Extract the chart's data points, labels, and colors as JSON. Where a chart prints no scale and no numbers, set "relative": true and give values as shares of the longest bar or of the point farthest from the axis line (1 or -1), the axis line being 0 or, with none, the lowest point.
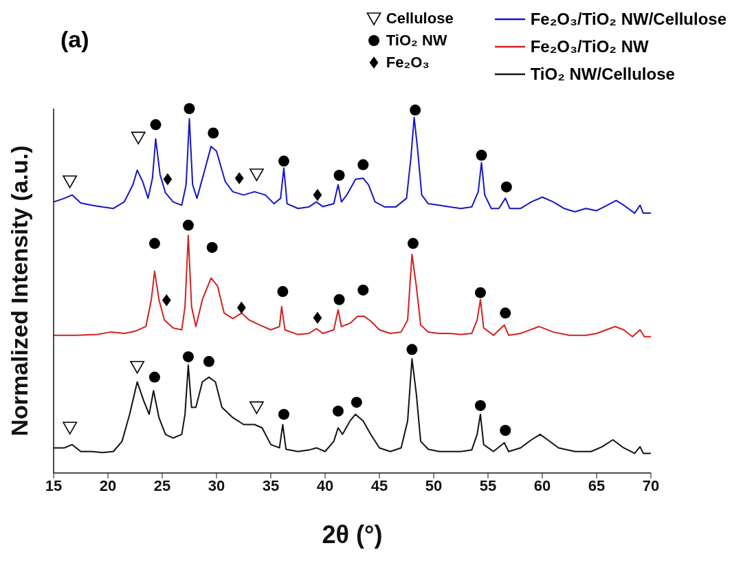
{
  "chart_data": {
    "type": "line",
    "relative": true,
    "xlabel": "2θ (°)",
    "ylabel": "Normalized Intensity (a.u.)",
    "annotations": [
      "(a)"
    ],
    "legend": "top right",
    "xlim": [
      15,
      70
    ],
    "xticks": [
      15,
      20,
      25,
      30,
      35,
      40,
      45,
      50,
      55,
      60,
      65,
      70
    ],
    "series": [
      {
        "name": "Fe₂O₃/TiO₂ NW/Cellulose",
        "color": "#1515c8",
        "x": [
          15.0,
          16.0,
          16.7,
          17.5,
          18.5,
          19.5,
          20.5,
          21.5,
          22.3,
          22.7,
          23.2,
          23.7,
          24.1,
          24.4,
          24.8,
          25.3,
          26.0,
          26.8,
          27.2,
          27.5,
          27.8,
          28.2,
          28.8,
          29.5,
          30.0,
          30.8,
          31.5,
          32.5,
          33.5,
          34.5,
          35.3,
          35.9,
          36.2,
          36.5,
          37.5,
          38.5,
          39.2,
          39.8,
          40.8,
          41.2,
          41.5,
          42.0,
          42.8,
          43.5,
          44.0,
          44.6,
          45.5,
          46.5,
          47.5,
          47.9,
          48.2,
          48.5,
          48.9,
          49.5,
          50.5,
          51.5,
          52.5,
          53.5,
          54.1,
          54.4,
          54.7,
          55.3,
          56.0,
          56.6,
          57.0,
          58.0,
          59.0,
          60.0,
          61.0,
          62.0,
          63.0,
          64.0,
          65.0,
          66.0,
          66.8,
          67.5,
          68.5,
          69.0,
          69.3,
          70.0
        ],
        "values": [
          0.744,
          0.754,
          0.763,
          0.741,
          0.735,
          0.73,
          0.726,
          0.744,
          0.791,
          0.831,
          0.8,
          0.754,
          0.809,
          0.917,
          0.819,
          0.769,
          0.744,
          0.735,
          0.791,
          0.972,
          0.791,
          0.754,
          0.819,
          0.896,
          0.883,
          0.8,
          0.772,
          0.763,
          0.772,
          0.763,
          0.739,
          0.754,
          0.837,
          0.739,
          0.726,
          0.73,
          0.744,
          0.731,
          0.739,
          0.791,
          0.744,
          0.763,
          0.806,
          0.809,
          0.791,
          0.744,
          0.73,
          0.73,
          0.754,
          0.865,
          0.976,
          0.893,
          0.763,
          0.739,
          0.735,
          0.73,
          0.726,
          0.73,
          0.772,
          0.852,
          0.763,
          0.726,
          0.726,
          0.754,
          0.726,
          0.726,
          0.744,
          0.757,
          0.744,
          0.726,
          0.717,
          0.726,
          0.72,
          0.735,
          0.748,
          0.735,
          0.713,
          0.735,
          0.713,
          0.713
        ]
      },
      {
        "name": "Fe₂O₃/TiO₂ NW",
        "color": "#d42020",
        "x": [
          15.0,
          17,
          19,
          20.3,
          21.5,
          22.5,
          23.5,
          24.0,
          24.3,
          24.7,
          25.2,
          26.0,
          26.8,
          27.1,
          27.4,
          27.7,
          28.1,
          28.7,
          29.5,
          30.1,
          30.7,
          31.5,
          32.3,
          33.0,
          34.0,
          35.0,
          35.8,
          36.0,
          36.3,
          37.5,
          38.5,
          39.2,
          39.8,
          40.8,
          41.2,
          41.5,
          42.3,
          43.0,
          43.6,
          44.2,
          45.0,
          46.0,
          47.0,
          47.6,
          48.0,
          48.4,
          48.8,
          49.5,
          50.5,
          51.5,
          52.5,
          53.5,
          54.0,
          54.3,
          54.6,
          55.5,
          56.5,
          56.9,
          58.0,
          59.7,
          61.0,
          62.5,
          64.0,
          65.0,
          66.7,
          67.5,
          68.3,
          69.0,
          69.4,
          70.0
        ],
        "values": [
          0.378,
          0.378,
          0.38,
          0.387,
          0.383,
          0.389,
          0.402,
          0.476,
          0.554,
          0.476,
          0.42,
          0.398,
          0.393,
          0.457,
          0.652,
          0.457,
          0.402,
          0.476,
          0.535,
          0.513,
          0.439,
          0.424,
          0.439,
          0.42,
          0.406,
          0.393,
          0.402,
          0.457,
          0.393,
          0.38,
          0.383,
          0.396,
          0.383,
          0.393,
          0.448,
          0.402,
          0.411,
          0.43,
          0.43,
          0.417,
          0.393,
          0.383,
          0.387,
          0.42,
          0.6,
          0.513,
          0.406,
          0.387,
          0.383,
          0.383,
          0.38,
          0.383,
          0.42,
          0.476,
          0.398,
          0.378,
          0.406,
          0.378,
          0.383,
          0.402,
          0.387,
          0.378,
          0.378,
          0.383,
          0.402,
          0.393,
          0.374,
          0.393,
          0.374,
          0.374
        ]
      },
      {
        "name": "TiO₂ NW/Cellulose",
        "color": "#111111",
        "x": [
          15.0,
          16.0,
          16.7,
          17.5,
          18.5,
          19.5,
          20.5,
          21.3,
          22.0,
          22.7,
          23.3,
          23.8,
          24.2,
          24.7,
          25.3,
          26.0,
          26.8,
          27.1,
          27.4,
          27.7,
          28.1,
          28.7,
          29.3,
          29.9,
          30.5,
          31.5,
          32.5,
          33.5,
          34.2,
          35.0,
          35.8,
          36.1,
          36.4,
          37.5,
          38.5,
          39.2,
          40.0,
          40.8,
          41.2,
          41.6,
          42.3,
          42.8,
          43.5,
          44.2,
          45.0,
          46.0,
          47.0,
          47.6,
          48.0,
          48.4,
          48.8,
          49.5,
          50.5,
          51.5,
          52.5,
          53.5,
          54.0,
          54.3,
          54.6,
          55.5,
          56.5,
          56.9,
          58.0,
          59.0,
          59.8,
          60.5,
          61.5,
          63.0,
          64.5,
          65.5,
          66.5,
          67.5,
          68.5,
          69.0,
          69.3,
          70.0
        ],
        "values": [
          0.069,
          0.069,
          0.078,
          0.059,
          0.059,
          0.056,
          0.059,
          0.087,
          0.161,
          0.25,
          0.198,
          0.161,
          0.226,
          0.152,
          0.106,
          0.096,
          0.106,
          0.161,
          0.296,
          0.18,
          0.18,
          0.25,
          0.263,
          0.25,
          0.18,
          0.152,
          0.133,
          0.133,
          0.124,
          0.078,
          0.069,
          0.133,
          0.065,
          0.059,
          0.063,
          0.069,
          0.059,
          0.087,
          0.124,
          0.106,
          0.143,
          0.161,
          0.143,
          0.106,
          0.069,
          0.059,
          0.069,
          0.143,
          0.313,
          0.217,
          0.087,
          0.065,
          0.059,
          0.059,
          0.059,
          0.063,
          0.106,
          0.161,
          0.078,
          0.059,
          0.083,
          0.059,
          0.069,
          0.091,
          0.106,
          0.091,
          0.069,
          0.059,
          0.059,
          0.072,
          0.091,
          0.069,
          0.054,
          0.072,
          0.054,
          0.054
        ]
      },
      {
        "name": "Cellulose",
        "type": "scatter",
        "marker": "triangle",
        "color": "#000000",
        "x": [
          16.5,
          22.8,
          33.7,
          16.5,
          22.7,
          33.7
        ],
        "values": [
          0.8,
          0.92,
          0.819,
          0.124,
          0.291,
          0.18
        ]
      },
      {
        "name": "TiO₂ NW",
        "type": "scatter",
        "marker": "circle",
        "color": "#000000",
        "x": [
          24.4,
          27.5,
          29.7,
          36.2,
          41.3,
          43.5,
          48.3,
          54.4,
          56.7,
          24.3,
          27.4,
          29.6,
          36.1,
          41.3,
          43.5,
          48.1,
          54.3,
          56.6,
          24.3,
          27.4,
          29.3,
          36.2,
          41.2,
          42.9,
          48.0,
          54.3,
          56.6
        ],
        "values": [
          0.956,
          1,
          0.933,
          0.856,
          0.817,
          0.846,
          0.996,
          0.872,
          0.785,
          0.63,
          0.68,
          0.619,
          0.498,
          0.476,
          0.502,
          0.63,
          0.495,
          0.439,
          0.263,
          0.319,
          0.306,
          0.161,
          0.17,
          0.194,
          0.339,
          0.185,
          0.117
        ]
      },
      {
        "name": "Fe₂O₃",
        "type": "scatter",
        "marker": "diamond",
        "color": "#000000",
        "x": [
          25.5,
          32.1,
          39.3,
          25.4,
          32.3,
          39.3
        ],
        "values": [
          0.806,
          0.809,
          0.763,
          0.474,
          0.454,
          0.426
        ]
      }
    ]
  }
}
